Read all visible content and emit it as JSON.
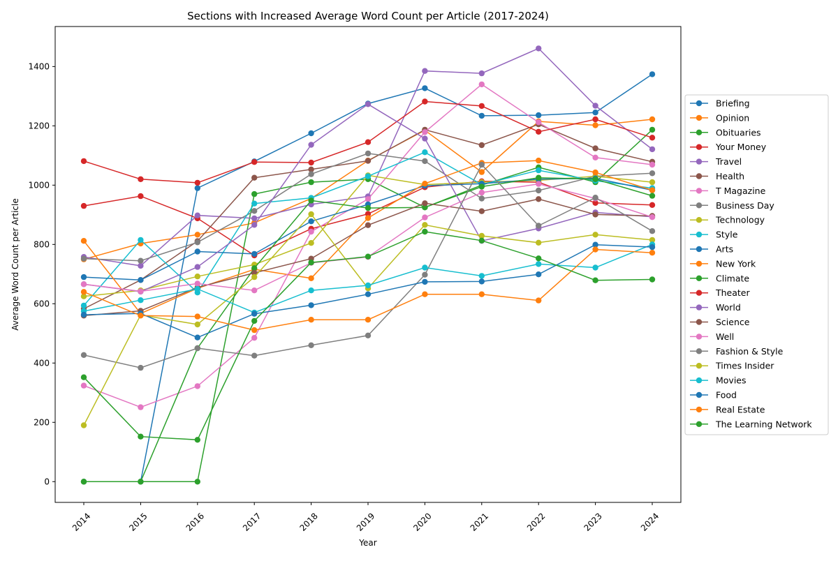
{
  "chart_data": {
    "type": "line",
    "title": "Sections with Increased Average Word Count per Article (2017-2024)",
    "xlabel": "Year",
    "ylabel": "Average Word Count per Article",
    "x": [
      "2014",
      "2015",
      "2016",
      "2017",
      "2018",
      "2019",
      "2020",
      "2021",
      "2022",
      "2023",
      "2024"
    ],
    "ylim": [
      -70,
      1535
    ],
    "yticks": [
      0,
      200,
      400,
      600,
      800,
      1000,
      1200,
      1400
    ],
    "grid": false,
    "legend_position": "center-right outside",
    "markers": "circle",
    "series": [
      {
        "name": "Briefing",
        "color": "#1f77b4",
        "values": [
          0,
          0,
          990,
          1080,
          1175,
          1275,
          1327,
          1234,
          1236,
          1245,
          1374
        ]
      },
      {
        "name": "Opinion",
        "color": "#ff7f0e",
        "values": [
          750,
          803,
          833,
          873,
          955,
          1083,
          1185,
          1044,
          1215,
          1202,
          1222
        ]
      },
      {
        "name": "Obituaries",
        "color": "#2ca02c",
        "values": [
          0,
          0,
          0,
          970,
          1010,
          1020,
          925,
          1000,
          1060,
          1010,
          1187
        ]
      },
      {
        "name": "Your Money",
        "color": "#d62728",
        "values": [
          930,
          963,
          888,
          763,
          853,
          903,
          993,
          1013,
          1010,
          940,
          933
        ]
      },
      {
        "name": "Travel",
        "color": "#9467bd",
        "values": [
          758,
          728,
          898,
          888,
          935,
          962,
          1385,
          1377,
          1461,
          1268,
          1121
        ]
      },
      {
        "name": "Health",
        "color": "#8c564b",
        "values": [
          583,
          680,
          811,
          1025,
          1053,
          1082,
          1187,
          1135,
          1205,
          1124,
          1079
        ]
      },
      {
        "name": "T Magazine",
        "color": "#e377c2",
        "values": [
          324,
          251,
          322,
          485,
          843,
          953,
          1179,
          1340,
          1212,
          1093,
          1069
        ]
      },
      {
        "name": "Business Day",
        "color": "#7f7f7f",
        "values": [
          752,
          745,
          807,
          913,
          1037,
          1107,
          1081,
          955,
          982,
          1030,
          1040
        ]
      },
      {
        "name": "Technology",
        "color": "#bcbd22",
        "values": [
          625,
          645,
          692,
          732,
          805,
          1033,
          1002,
          1010,
          1016,
          1030,
          1010
        ]
      },
      {
        "name": "Style",
        "color": "#17becf",
        "values": [
          594,
          815,
          638,
          938,
          957,
          1030,
          1111,
          1002,
          1050,
          1015,
          990
        ]
      },
      {
        "name": "Arts",
        "color": "#1f77b4",
        "values": [
          690,
          680,
          776,
          768,
          878,
          935,
          998,
          1005,
          1020,
          1023,
          983
        ]
      },
      {
        "name": "New York",
        "color": "#ff7f0e",
        "values": [
          812,
          567,
          652,
          716,
          686,
          889,
          1005,
          1075,
          1083,
          1043,
          983
        ]
      },
      {
        "name": "Climate",
        "color": "#2ca02c",
        "values": [
          0,
          0,
          450,
          720,
          948,
          923,
          925,
          995,
          1025,
          1020,
          964
        ]
      },
      {
        "name": "Theater",
        "color": "#d62728",
        "values": [
          1081,
          1020,
          1008,
          1078,
          1076,
          1145,
          1282,
          1267,
          1180,
          1222,
          1160
        ]
      },
      {
        "name": "World",
        "color": "#9467bd",
        "values": [
          666,
          641,
          724,
          866,
          1136,
          1273,
          1157,
          812,
          854,
          908,
          893
        ]
      },
      {
        "name": "Science",
        "color": "#8c564b",
        "values": [
          560,
          576,
          655,
          704,
          752,
          865,
          939,
          912,
          953,
          901,
          896
        ]
      },
      {
        "name": "Well",
        "color": "#e377c2",
        "values": [
          666,
          642,
          668,
          645,
          738,
          758,
          891,
          975,
          1004,
          955,
          892
        ]
      },
      {
        "name": "Fashion & Style",
        "color": "#7f7f7f",
        "values": [
          427,
          384,
          450,
          425,
          460,
          493,
          698,
          1069,
          863,
          958,
          845
        ]
      },
      {
        "name": "Times Insider",
        "color": "#bcbd22",
        "values": [
          190,
          562,
          530,
          690,
          902,
          652,
          866,
          829,
          806,
          833,
          815
        ]
      },
      {
        "name": "Movies",
        "color": "#17becf",
        "values": [
          575,
          612,
          650,
          570,
          645,
          662,
          722,
          694,
          734,
          722,
          800
        ]
      },
      {
        "name": "Food",
        "color": "#1f77b4",
        "values": [
          563,
          567,
          486,
          566,
          595,
          632,
          674,
          675,
          699,
          799,
          791
        ]
      },
      {
        "name": "Real Estate",
        "color": "#ff7f0e",
        "values": [
          640,
          560,
          557,
          511,
          546,
          546,
          632,
          632,
          611,
          783,
          772
        ]
      },
      {
        "name": "The Learning Network",
        "color": "#2ca02c",
        "values": [
          352,
          152,
          141,
          542,
          739,
          759,
          843,
          813,
          753,
          679,
          682
        ]
      }
    ]
  }
}
